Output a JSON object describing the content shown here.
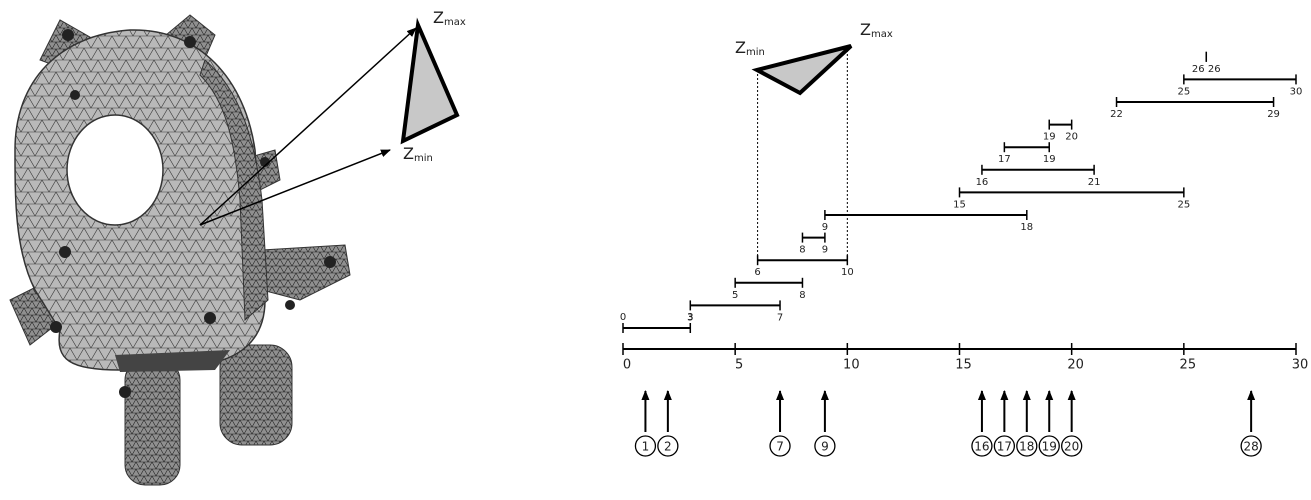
{
  "mesh_view": {
    "zmax": {
      "symbol": "Z",
      "subscript": "max"
    },
    "zmin": {
      "symbol": "Z",
      "subscript": "min"
    }
  },
  "interval_view": {
    "zmin": {
      "symbol": "Z",
      "subscript": "min"
    },
    "zmax": {
      "symbol": "Z",
      "subscript": "max"
    },
    "triangle_interval": 3,
    "intervals": [
      {
        "start": 0,
        "end": 3
      },
      {
        "start": 3,
        "end": 7
      },
      {
        "start": 5,
        "end": 8
      },
      {
        "start": 6,
        "end": 10
      },
      {
        "start": 8,
        "end": 9
      },
      {
        "start": 9,
        "end": 18
      },
      {
        "start": 15,
        "end": 25
      },
      {
        "start": 16,
        "end": 21
      },
      {
        "start": 17,
        "end": 19
      },
      {
        "start": 19,
        "end": 20
      },
      {
        "start": 22,
        "end": 29
      },
      {
        "start": 25,
        "end": 30
      },
      {
        "start": 26,
        "end": 26
      }
    ],
    "axis": {
      "lim": [
        0,
        30
      ],
      "ticks": [
        0,
        5,
        10,
        15,
        20,
        25,
        30
      ]
    },
    "slices": [
      1,
      2,
      7,
      9,
      16,
      17,
      18,
      19,
      20,
      28
    ]
  }
}
